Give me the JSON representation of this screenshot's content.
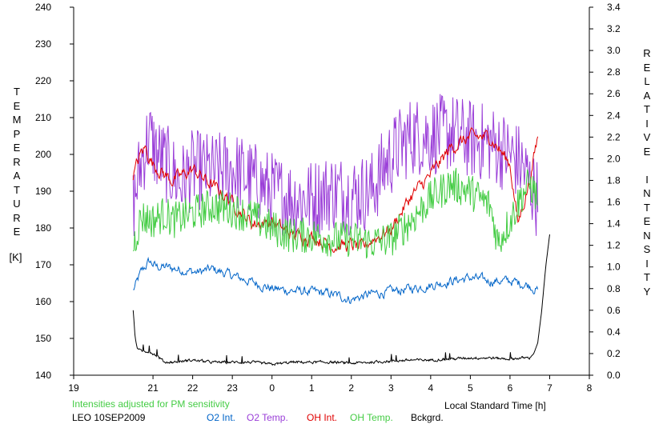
{
  "chart_data": {
    "type": "line",
    "y_left_label": "TEMPERATURE",
    "y_left_unit": "[K]",
    "y_right_label": "RELATIVE INTENSITY",
    "x_label": "Local Standard Time [h]",
    "note": "Intensities adjusted for PM sensitivity",
    "station_date": "LEO 10SEP2009",
    "x_ticks": [
      "19",
      "21",
      "22",
      "23",
      "0",
      "1",
      "2",
      "3",
      "4",
      "5",
      "6",
      "7",
      "8"
    ],
    "y_left_ticks": [
      "240",
      "230",
      "220",
      "210",
      "200",
      "190",
      "180",
      "170",
      "160",
      "150",
      "140"
    ],
    "y_right_ticks": [
      "3.4",
      "3.2",
      "3.0",
      "2.8",
      "2.6",
      "2.4",
      "2.2",
      "2.0",
      "1.8",
      "1.6",
      "1.4",
      "1.2",
      "1.0",
      "0.8",
      "0.6",
      "0.4",
      "0.2",
      "0.0"
    ],
    "xlim": [
      19,
      32
    ],
    "ylim_left": [
      140,
      240
    ],
    "ylim_right": [
      0,
      3.4
    ],
    "grid": false,
    "legend_position": "bottom",
    "series": [
      {
        "name": "O2 Int.",
        "color": "#0064c8",
        "axis": "right",
        "x": [
          20.5,
          20.7,
          20.9,
          21.1,
          21.3,
          22.1,
          22.5,
          23.0,
          23.5,
          24.0,
          24.5,
          25.0,
          25.5,
          26.0,
          26.5,
          27.0,
          27.5,
          28.0,
          28.5,
          29.0,
          29.5,
          30.0,
          30.5,
          30.7
        ],
        "y": [
          0.78,
          0.95,
          1.05,
          1.0,
          1.0,
          0.95,
          0.98,
          0.92,
          0.86,
          0.8,
          0.78,
          0.77,
          0.75,
          0.7,
          0.75,
          0.77,
          0.8,
          0.83,
          0.87,
          0.9,
          0.87,
          0.87,
          0.83,
          0.78
        ]
      },
      {
        "name": "O2 Temp.",
        "color": "#9a3ed8",
        "axis": "left",
        "x": [
          20.5,
          20.7,
          20.9,
          21.1,
          21.3,
          21.5,
          21.7,
          22.0,
          22.5,
          23.0,
          23.5,
          24.0,
          24.5,
          25.0,
          25.5,
          26.0,
          26.5,
          26.9,
          27.2,
          27.5,
          28.0,
          28.5,
          29.0,
          29.5,
          30.0,
          30.3,
          30.5,
          30.7
        ],
        "y": [
          186,
          198,
          205,
          200,
          198,
          195,
          192,
          196,
          195,
          196,
          193,
          190,
          188,
          188,
          190,
          189,
          190,
          198,
          202,
          205,
          205,
          206,
          204,
          203,
          200,
          197,
          192,
          188
        ]
      },
      {
        "name": "OH Int.",
        "color": "#e00000",
        "axis": "right",
        "x": [
          20.5,
          20.7,
          20.8,
          21.0,
          21.3,
          21.5,
          22.0,
          22.5,
          23.0,
          23.5,
          24.0,
          24.5,
          25.0,
          25.5,
          26.0,
          26.3,
          26.5,
          27.0,
          27.5,
          28.0,
          28.5,
          29.0,
          29.5,
          30.0,
          30.2,
          30.5,
          30.7
        ],
        "y": [
          1.85,
          2.05,
          2.1,
          1.95,
          1.85,
          1.8,
          1.9,
          1.75,
          1.6,
          1.4,
          1.42,
          1.3,
          1.28,
          1.2,
          1.2,
          1.17,
          1.25,
          1.35,
          1.65,
          1.85,
          2.1,
          2.2,
          2.2,
          1.95,
          1.4,
          1.8,
          2.2
        ]
      },
      {
        "name": "OH Temp.",
        "color": "#44cc44",
        "axis": "left",
        "x": [
          20.5,
          20.7,
          21.0,
          21.3,
          21.5,
          22.0,
          22.5,
          23.0,
          23.5,
          24.0,
          24.5,
          25.0,
          25.5,
          26.0,
          26.5,
          27.0,
          27.5,
          28.0,
          28.5,
          29.0,
          29.5,
          29.7,
          30.0,
          30.3,
          30.5,
          30.7
        ],
        "y": [
          175,
          183,
          182,
          184,
          182,
          184,
          186,
          185,
          183,
          180,
          178,
          178,
          177,
          177,
          176,
          177,
          182,
          188,
          192,
          190,
          186,
          176,
          182,
          189,
          192,
          188
        ]
      },
      {
        "name": "Bckgrd.",
        "color": "#000000",
        "axis": "right",
        "x": [
          20.5,
          20.55,
          20.6,
          20.7,
          20.9,
          21.1,
          21.3,
          21.5,
          22.0,
          22.5,
          23.0,
          23.5,
          24.0,
          24.5,
          25.0,
          25.5,
          26.0,
          26.5,
          27.0,
          27.5,
          28.0,
          28.5,
          29.0,
          29.5,
          30.0,
          30.3,
          30.5,
          30.6,
          30.7,
          30.8,
          30.9,
          31.0
        ],
        "y": [
          0.6,
          0.35,
          0.25,
          0.22,
          0.22,
          0.18,
          0.12,
          0.12,
          0.14,
          0.12,
          0.12,
          0.12,
          0.1,
          0.12,
          0.12,
          0.12,
          0.11,
          0.12,
          0.13,
          0.14,
          0.14,
          0.15,
          0.16,
          0.16,
          0.15,
          0.16,
          0.16,
          0.2,
          0.3,
          0.6,
          1.0,
          1.3
        ]
      }
    ]
  }
}
